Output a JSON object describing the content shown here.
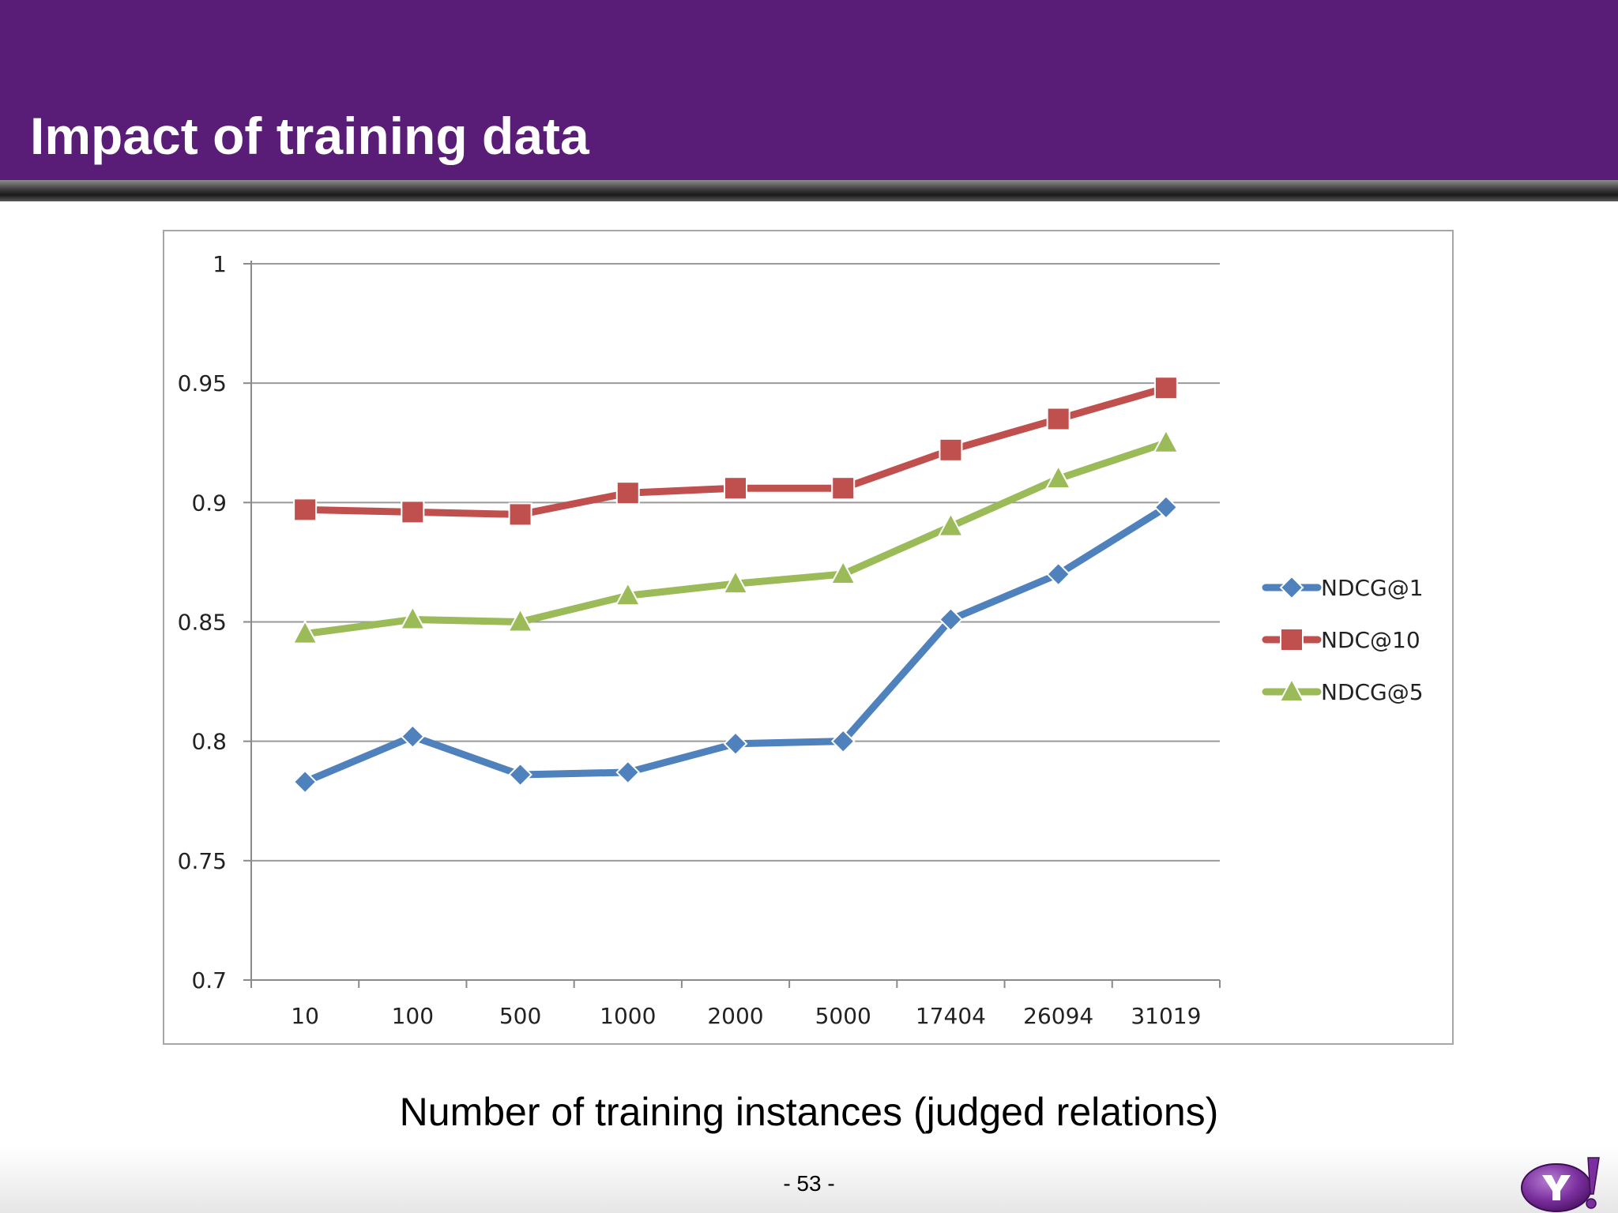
{
  "slide": {
    "title": "Impact of training data",
    "x_caption": "Number of training instances (judged relations)",
    "page_number": "- 53 -",
    "logo_text": "Y!",
    "colors": {
      "header": "#5a1d77",
      "logo": "#7b2f9e"
    }
  },
  "chart_data": {
    "type": "line",
    "categories": [
      "10",
      "100",
      "500",
      "1000",
      "2000",
      "5000",
      "17404",
      "26094",
      "31019"
    ],
    "ylim": [
      0.7,
      1
    ],
    "yticks": [
      "0.7",
      "0.75",
      "0.8",
      "0.85",
      "0.9",
      "0.95",
      "1"
    ],
    "grid": true,
    "legend_position": "right",
    "series": [
      {
        "name": "NDCG@1",
        "marker": "diamond",
        "color": "#4f81bd",
        "values": [
          0.783,
          0.802,
          0.786,
          0.787,
          0.799,
          0.8,
          0.851,
          0.87,
          0.898
        ]
      },
      {
        "name": "NDC@10",
        "marker": "square",
        "color": "#c0504d",
        "values": [
          0.897,
          0.896,
          0.895,
          0.904,
          0.906,
          0.906,
          0.922,
          0.935,
          0.948
        ]
      },
      {
        "name": "NDCG@5",
        "marker": "triangle",
        "color": "#9bbb59",
        "values": [
          0.845,
          0.851,
          0.85,
          0.861,
          0.866,
          0.87,
          0.89,
          0.91,
          0.925
        ]
      }
    ]
  }
}
